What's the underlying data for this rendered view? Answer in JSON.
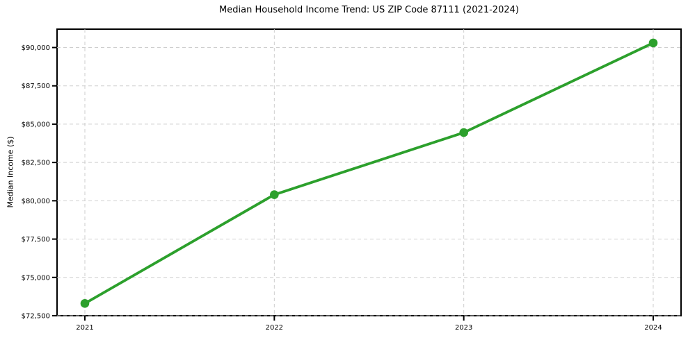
{
  "chart": {
    "title": "Median Household Income Trend: US ZIP Code 87111 (2021-2024)",
    "ylabel": "Median Income ($)"
  },
  "chart_data": {
    "type": "line",
    "title": "Median Household Income Trend: US ZIP Code 87111 (2021-2024)",
    "xlabel": "",
    "ylabel": "Median Income ($)",
    "categories": [
      "2021",
      "2022",
      "2023",
      "2024"
    ],
    "values": [
      73300,
      80400,
      84450,
      90300
    ],
    "ylim": [
      72500,
      91200
    ],
    "yticks": [
      72500,
      75000,
      77500,
      80000,
      82500,
      85000,
      87500,
      90000
    ],
    "ytick_labels": [
      "$72,500",
      "$75,000",
      "$77,500",
      "$80,000",
      "$82,500",
      "$85,000",
      "$87,500",
      "$90,000"
    ],
    "grid": "both-dashed",
    "legend": "none",
    "line_color": "#2ca02c",
    "marker": "circle",
    "marker_color": "#2ca02c",
    "grid_color": "#c9c9c9",
    "axis_color": "#000000",
    "background_color": "#ffffff"
  }
}
